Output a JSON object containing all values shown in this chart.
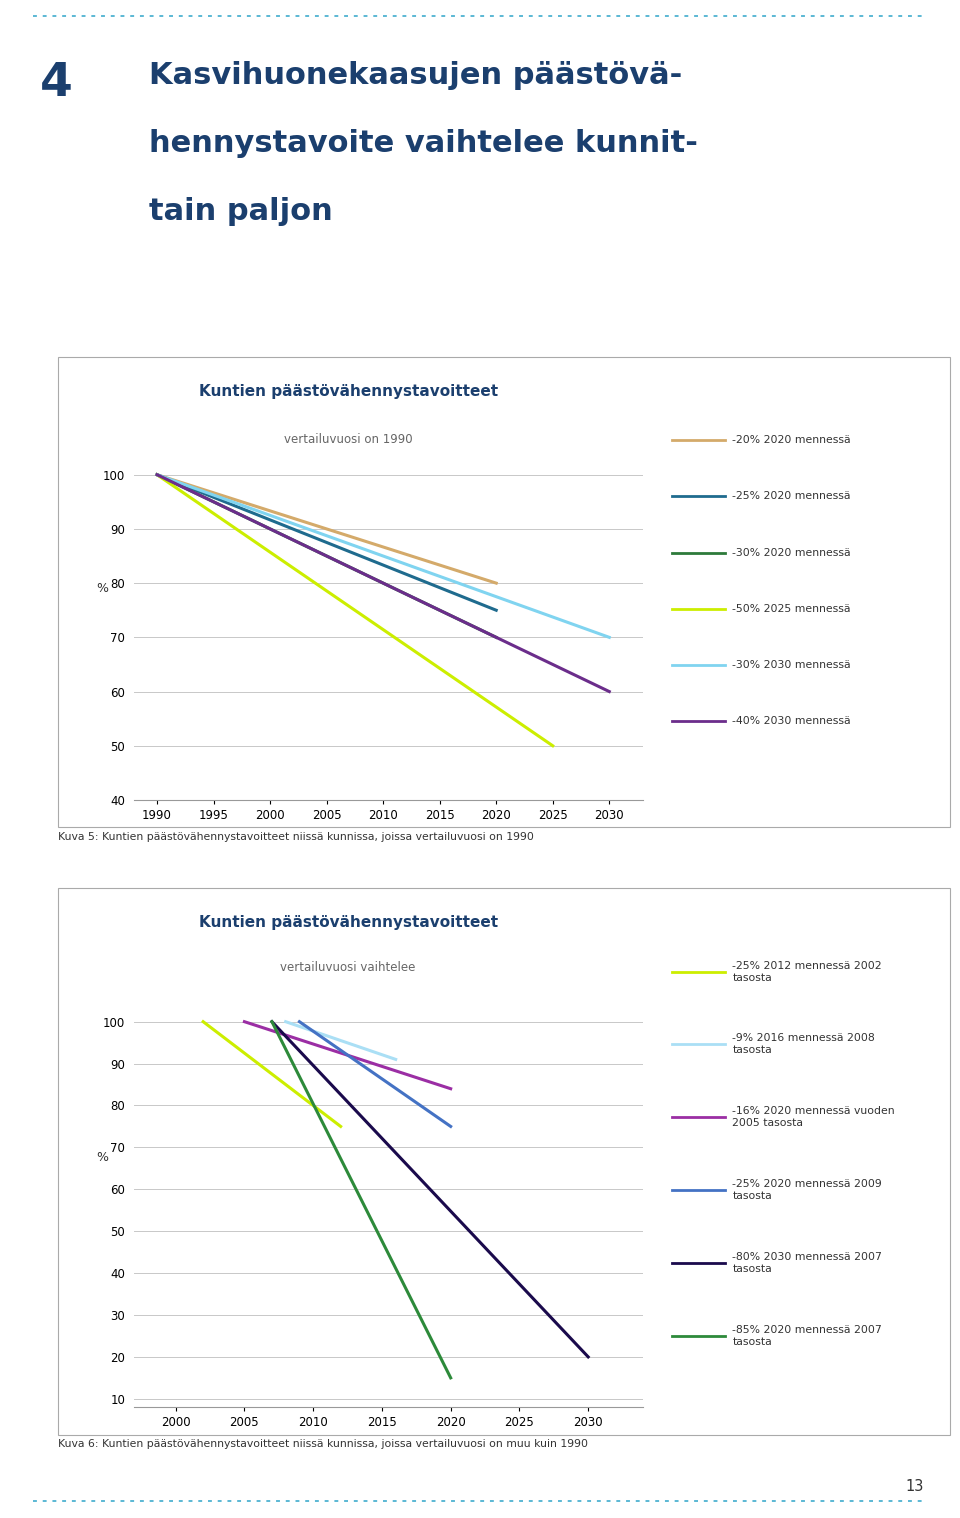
{
  "page_title_num": "4",
  "page_title_line1": "Kasvihuonekaasujen päästövä-",
  "page_title_line2": "hennystavoite vaihtelee kunnit-",
  "page_title_line3": "tain paljon",
  "chart1": {
    "title": "Kuntien päästövähennystavoitteet",
    "subtitle": "vertailuvuosi on 1990",
    "ylim": [
      40,
      103
    ],
    "yticks": [
      40,
      50,
      60,
      70,
      80,
      90,
      100
    ],
    "xticks": [
      1990,
      1995,
      2000,
      2005,
      2010,
      2015,
      2020,
      2025,
      2030
    ],
    "xlim": [
      1988,
      2033
    ],
    "series": [
      {
        "label": "-20% 2020 mennessä",
        "color": "#D4AA6A",
        "x": [
          1990,
          2020
        ],
        "y": [
          100,
          80
        ]
      },
      {
        "label": "-25% 2020 mennessä",
        "color": "#1F6B8E",
        "x": [
          1990,
          2020
        ],
        "y": [
          100,
          75
        ]
      },
      {
        "label": "-30% 2020 mennessä",
        "color": "#2D7A3A",
        "x": [
          1990,
          2020
        ],
        "y": [
          100,
          70
        ]
      },
      {
        "label": "-50% 2025 mennessä",
        "color": "#CCEE00",
        "x": [
          1990,
          2025
        ],
        "y": [
          100,
          50
        ]
      },
      {
        "label": "-30% 2030 mennessä",
        "color": "#80D4F0",
        "x": [
          1990,
          2030
        ],
        "y": [
          100,
          70
        ]
      },
      {
        "label": "-40% 2030 mennessä",
        "color": "#6B2D8B",
        "x": [
          1990,
          2030
        ],
        "y": [
          100,
          60
        ]
      }
    ],
    "caption": "Kuva 5: Kuntien päästövähennystavoitteet niissä kunnissa, joissa vertailuvuosi on 1990"
  },
  "chart2": {
    "title": "Kuntien päästövähennystavoitteet",
    "subtitle": "vertailuvuosi vaihtelee",
    "ylim": [
      8,
      104
    ],
    "yticks": [
      10,
      20,
      30,
      40,
      50,
      60,
      70,
      80,
      90,
      100
    ],
    "xticks": [
      2000,
      2005,
      2010,
      2015,
      2020,
      2025,
      2030
    ],
    "xlim": [
      1997,
      2034
    ],
    "series": [
      {
        "label": "-25% 2012 mennessä 2002\ntasosta",
        "color": "#CCEE00",
        "x": [
          2002,
          2012
        ],
        "y": [
          100,
          75
        ]
      },
      {
        "label": "-9% 2016 mennessä 2008\ntasosta",
        "color": "#AADFF5",
        "x": [
          2008,
          2016
        ],
        "y": [
          100,
          91
        ]
      },
      {
        "label": "-16% 2020 mennessä vuoden\n2005 tasosta",
        "color": "#9B2EA4",
        "x": [
          2005,
          2020
        ],
        "y": [
          100,
          84
        ]
      },
      {
        "label": "-25% 2020 mennessä 2009\ntasosta",
        "color": "#4472C4",
        "x": [
          2009,
          2020
        ],
        "y": [
          100,
          75
        ]
      },
      {
        "label": "-80% 2030 mennessä 2007\ntasosta",
        "color": "#1A0A4C",
        "x": [
          2007,
          2030
        ],
        "y": [
          100,
          20
        ]
      },
      {
        "label": "-85% 2020 mennessä 2007\ntasosta",
        "color": "#2D8A3A",
        "x": [
          2007,
          2020
        ],
        "y": [
          100,
          15
        ]
      }
    ],
    "caption": "Kuva 6: Kuntien päästövähennystavoitteet niissä kunnissa, joissa vertailuvuosi on muu kuin 1990"
  },
  "title_color": "#1B3F6E",
  "subtitle_color": "#666666",
  "text_color": "#333333",
  "grid_color": "#C8C8C8",
  "border_color": "#AAAAAA",
  "dot_line_color": "#5BB8D4",
  "page_num": "13",
  "lw": 2.2
}
